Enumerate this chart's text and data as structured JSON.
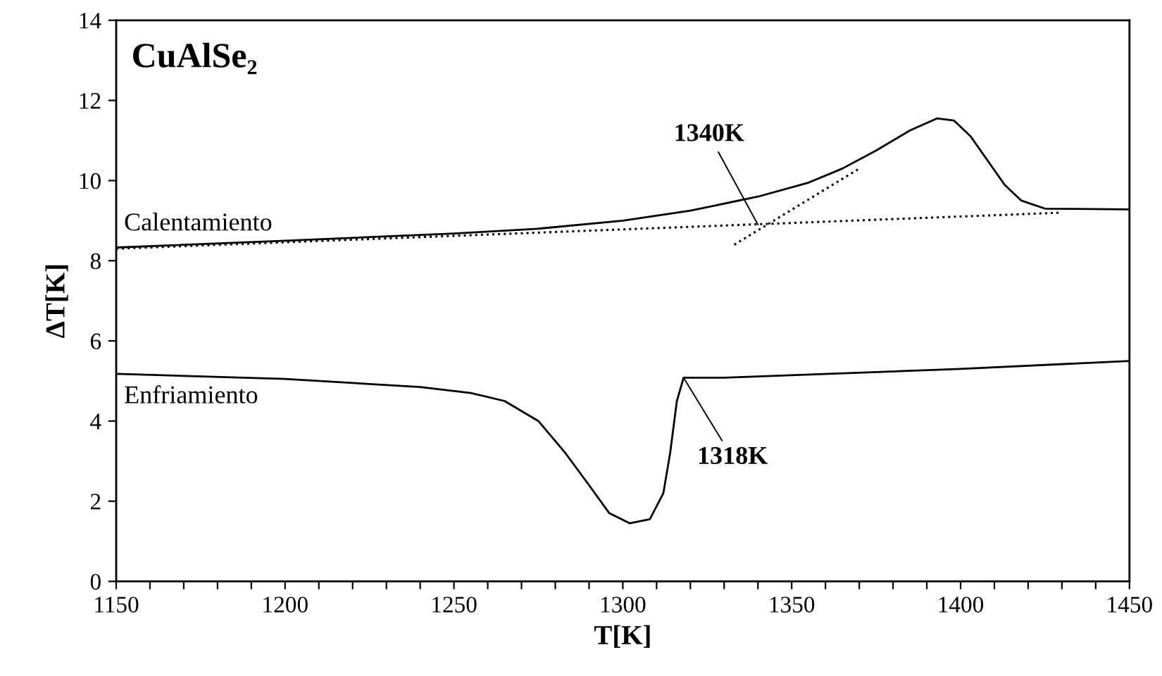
{
  "chart_data": {
    "type": "line",
    "title": "CuAlSe₂",
    "xlabel": "T[K]",
    "ylabel": "ΔT[K]",
    "xlim": [
      1150,
      1450
    ],
    "ylim": [
      0,
      14
    ],
    "xticks": [
      1150,
      {
        "value": 1160,
        "label": null
      },
      {
        "value": 1170,
        "label": null
      },
      {
        "value": 1180,
        "label": null
      },
      {
        "value": 1190,
        "label": null
      },
      1200,
      {
        "value": 1210,
        "label": null
      },
      {
        "value": 1220,
        "label": null
      },
      {
        "value": 1230,
        "label": null
      },
      {
        "value": 1240,
        "label": null
      },
      1250,
      {
        "value": 1260,
        "label": null
      },
      {
        "value": 1270,
        "label": null
      },
      {
        "value": 1280,
        "label": null
      },
      {
        "value": 1290,
        "label": null
      },
      1300,
      {
        "value": 1310,
        "label": null
      },
      {
        "value": 1320,
        "label": null
      },
      {
        "value": 1330,
        "label": null
      },
      {
        "value": 1340,
        "label": null
      },
      1350,
      {
        "value": 1360,
        "label": null
      },
      {
        "value": 1370,
        "label": null
      },
      {
        "value": 1380,
        "label": null
      },
      {
        "value": 1390,
        "label": null
      },
      1400,
      {
        "value": 1410,
        "label": null
      },
      {
        "value": 1420,
        "label": null
      },
      {
        "value": 1430,
        "label": null
      },
      {
        "value": 1440,
        "label": null
      },
      1450
    ],
    "yticks": [
      0,
      2,
      4,
      6,
      8,
      10,
      12,
      14
    ],
    "grid": false,
    "marker": "none",
    "series": [
      {
        "name": "Calentamiento",
        "color": "#000000",
        "line_style": "solid",
        "x": [
          1150,
          1200,
          1250,
          1275,
          1300,
          1320,
          1340,
          1355,
          1365,
          1375,
          1385,
          1393,
          1398,
          1403,
          1408,
          1413,
          1418,
          1425,
          1450
        ],
        "values": [
          8.33,
          8.5,
          8.68,
          8.8,
          9.0,
          9.25,
          9.6,
          9.95,
          10.3,
          10.75,
          11.25,
          11.55,
          11.5,
          11.1,
          10.5,
          9.9,
          9.5,
          9.3,
          9.28
        ]
      },
      {
        "name": "Enfriamiento",
        "color": "#000000",
        "line_style": "solid",
        "x": [
          1150,
          1200,
          1240,
          1255,
          1265,
          1275,
          1283,
          1290,
          1296,
          1302,
          1308,
          1312,
          1314,
          1316,
          1318,
          1330,
          1400,
          1450
        ],
        "values": [
          5.18,
          5.05,
          4.85,
          4.7,
          4.5,
          4.0,
          3.2,
          2.4,
          1.7,
          1.45,
          1.55,
          2.2,
          3.2,
          4.5,
          5.08,
          5.08,
          5.3,
          5.5
        ]
      },
      {
        "color": "#000000",
        "line_style": "dotted",
        "x": [
          1150,
          1430
        ],
        "values": [
          8.3,
          9.2
        ]
      },
      {
        "color": "#000000",
        "line_style": "dotted",
        "x": [
          1333,
          1370
        ],
        "values": [
          8.4,
          10.3
        ]
      }
    ],
    "annotations": [
      {
        "text": "1340K",
        "x": 1340,
        "y": 8.9
      },
      {
        "text": "1318K",
        "x": 1318,
        "y": 5.08
      }
    ]
  }
}
